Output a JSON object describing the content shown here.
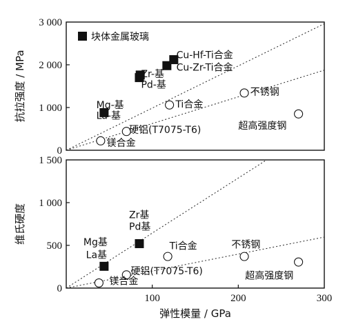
{
  "chart_data": [
    {
      "type": "scatter",
      "xlim": [
        0,
        300
      ],
      "ylim": [
        0,
        3000
      ],
      "xticks": [],
      "yticks": [
        {
          "v": 0,
          "t": "0"
        },
        {
          "v": 1000,
          "t": "1 000"
        },
        {
          "v": 2000,
          "t": "2 000"
        },
        {
          "v": 3000,
          "t": "3 000"
        }
      ],
      "ylabel": "抗拉强度 / MPa",
      "legend": {
        "marker": "filled-square",
        "text": "块体金属玻璃",
        "position": "top-left"
      },
      "series": [
        {
          "marker": "filled-square",
          "points": [
            {
              "x": 117,
              "y": 1980
            },
            {
              "x": 125,
              "y": 2120
            },
            {
              "x": 85,
              "y": 1700
            },
            {
              "x": 86,
              "y": 1760
            },
            {
              "x": 44,
              "y": 880
            }
          ]
        },
        {
          "marker": "open-circle",
          "points": [
            {
              "x": 120,
              "y": 1060
            },
            {
              "x": 207,
              "y": 1340
            },
            {
              "x": 270,
              "y": 850
            },
            {
              "x": 70,
              "y": 440
            },
            {
              "x": 40,
              "y": 220
            }
          ]
        }
      ],
      "lines": [
        {
          "style": "dotted",
          "from": [
            0,
            0
          ],
          "to": [
            304,
            3000
          ]
        },
        {
          "style": "dotted",
          "from": [
            0,
            0
          ],
          "to": [
            304,
            1900
          ]
        }
      ],
      "annotations": [
        {
          "text": "Cu-Hf-Ti合金",
          "x": 128,
          "y": 2150
        },
        {
          "text": "Cu-Zr-Ti合金",
          "x": 128,
          "y": 1860
        },
        {
          "text": "Zr-基",
          "x": 87,
          "y": 1710
        },
        {
          "text": "Pd-基",
          "x": 87,
          "y": 1460
        },
        {
          "text": "Mg-基",
          "x": 35,
          "y": 980
        },
        {
          "text": "La-基",
          "x": 35,
          "y": 730
        },
        {
          "text": "Ti合金",
          "x": 127,
          "y": 1000
        },
        {
          "text": "不锈钢",
          "x": 214,
          "y": 1290
        },
        {
          "text": "超高强度钢",
          "x": 200,
          "y": 500
        },
        {
          "text": "硬铝(T7075-T6)",
          "x": 73,
          "y": 400
        },
        {
          "text": "镁合金",
          "x": 47,
          "y": 100
        }
      ]
    },
    {
      "type": "scatter",
      "xlim": [
        0,
        300
      ],
      "ylim": [
        0,
        1500
      ],
      "xticks": [
        {
          "v": 100,
          "t": "100"
        },
        {
          "v": 200,
          "t": "200"
        },
        {
          "v": 300,
          "t": "300"
        }
      ],
      "yticks": [
        {
          "v": 0,
          "t": "0"
        },
        {
          "v": 500,
          "t": "500"
        },
        {
          "v": 1000,
          "t": "1 000"
        },
        {
          "v": 1500,
          "t": "1 500"
        }
      ],
      "xlabel": "弹性模量 / GPa",
      "ylabel": "维氏硬度",
      "series": [
        {
          "marker": "filled-square",
          "points": [
            {
              "x": 85,
              "y": 520
            },
            {
              "x": 44,
              "y": 255
            }
          ]
        },
        {
          "marker": "open-circle",
          "points": [
            {
              "x": 118,
              "y": 370
            },
            {
              "x": 207,
              "y": 370
            },
            {
              "x": 270,
              "y": 305
            },
            {
              "x": 70,
              "y": 155
            },
            {
              "x": 38,
              "y": 60
            }
          ]
        }
      ],
      "lines": [
        {
          "style": "dotted",
          "from": [
            0,
            0
          ],
          "to": [
            233,
            1500
          ]
        },
        {
          "style": "dotted",
          "from": [
            0,
            0
          ],
          "to": [
            304,
            605
          ]
        }
      ],
      "annotations": [
        {
          "text": "Zr基",
          "x": 73,
          "y": 820
        },
        {
          "text": "Pd基",
          "x": 73,
          "y": 680
        },
        {
          "text": "Mg基",
          "x": 20,
          "y": 500
        },
        {
          "text": "La基",
          "x": 23,
          "y": 350
        },
        {
          "text": "Ti合金",
          "x": 120,
          "y": 455
        },
        {
          "text": "不锈钢",
          "x": 192,
          "y": 470
        },
        {
          "text": "超高强度钢",
          "x": 208,
          "y": 110
        },
        {
          "text": "硬铝(T7075-T6)",
          "x": 75,
          "y": 160
        },
        {
          "text": "镁合金",
          "x": 50,
          "y": 45
        }
      ]
    }
  ]
}
